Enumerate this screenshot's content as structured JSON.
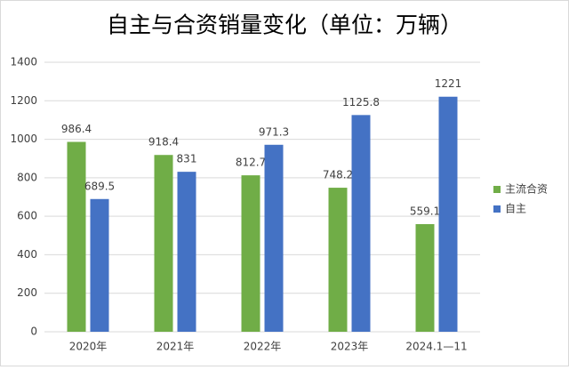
{
  "chart_data": {
    "type": "bar",
    "title": "自主与合资销量变化（单位：万辆）",
    "categories": [
      "2020年",
      "2021年",
      "2022年",
      "2023年",
      "2024.1—11"
    ],
    "series": [
      {
        "name": "主流合资",
        "color": "#70ad47",
        "values": [
          986.4,
          918.4,
          812.7,
          748.2,
          559.1
        ]
      },
      {
        "name": "自主",
        "color": "#4472c4",
        "values": [
          689.5,
          831,
          971.3,
          1125.8,
          1221
        ]
      }
    ],
    "ylim": [
      0,
      1400
    ],
    "yticks": [
      0,
      200,
      400,
      600,
      800,
      1000,
      1200,
      1400
    ],
    "grid": true,
    "legend": "right"
  }
}
